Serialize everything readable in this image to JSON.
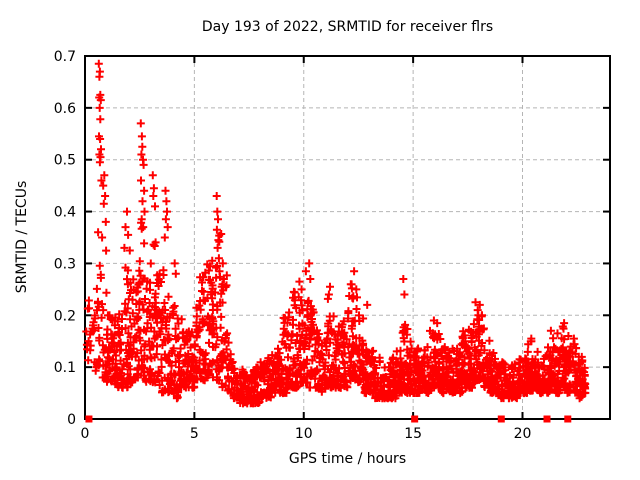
{
  "title": "Day 193 of 2022, SRMTID for receiver flrs",
  "chart_data": {
    "type": "scatter",
    "title": "Day 193 of 2022, SRMTID for receiver flrs",
    "xlabel": "GPS time / hours",
    "ylabel": "SRMTID / TECUs",
    "xlim": [
      0,
      24
    ],
    "ylim": [
      0,
      0.7
    ],
    "xticks": [
      0,
      5,
      10,
      15,
      20
    ],
    "yticks": [
      0,
      0.1,
      0.2,
      0.3,
      0.4,
      0.5,
      0.6,
      0.7
    ],
    "grid": true,
    "legend": "none",
    "marker": "plus",
    "zero_marker": "filled-square",
    "colors": {
      "marker": "#ff0000",
      "grid": "#b5b5b5",
      "border": "#000000",
      "background": "#ffffff"
    },
    "x_data_max": 22.9,
    "bin_width": 0.25,
    "bins": [
      [
        0.0,
        0.09,
        0.24,
        10
      ],
      [
        0.25,
        0.09,
        0.21,
        10
      ],
      [
        0.5,
        0.1,
        0.3,
        16
      ],
      [
        0.75,
        0.08,
        0.35,
        16
      ],
      [
        1.0,
        0.07,
        0.22,
        26
      ],
      [
        1.25,
        0.06,
        0.2,
        26
      ],
      [
        1.5,
        0.06,
        0.22,
        26
      ],
      [
        1.75,
        0.06,
        0.3,
        26
      ],
      [
        2.0,
        0.07,
        0.28,
        26
      ],
      [
        2.25,
        0.08,
        0.35,
        26
      ],
      [
        2.5,
        0.08,
        0.4,
        26
      ],
      [
        2.75,
        0.07,
        0.3,
        26
      ],
      [
        3.0,
        0.07,
        0.35,
        26
      ],
      [
        3.25,
        0.06,
        0.28,
        26
      ],
      [
        3.5,
        0.05,
        0.32,
        26
      ],
      [
        3.75,
        0.05,
        0.25,
        26
      ],
      [
        4.0,
        0.04,
        0.22,
        26
      ],
      [
        4.25,
        0.05,
        0.2,
        26
      ],
      [
        4.5,
        0.06,
        0.18,
        26
      ],
      [
        4.75,
        0.06,
        0.17,
        26
      ],
      [
        5.0,
        0.07,
        0.24,
        26
      ],
      [
        5.25,
        0.07,
        0.28,
        26
      ],
      [
        5.5,
        0.08,
        0.3,
        26
      ],
      [
        5.75,
        0.08,
        0.32,
        26
      ],
      [
        6.0,
        0.07,
        0.36,
        26
      ],
      [
        6.25,
        0.06,
        0.3,
        22
      ],
      [
        6.5,
        0.05,
        0.15,
        20
      ],
      [
        6.75,
        0.04,
        0.12,
        20
      ],
      [
        7.0,
        0.03,
        0.1,
        24
      ],
      [
        7.25,
        0.03,
        0.09,
        26
      ],
      [
        7.5,
        0.03,
        0.1,
        26
      ],
      [
        7.75,
        0.03,
        0.1,
        26
      ],
      [
        8.0,
        0.04,
        0.11,
        26
      ],
      [
        8.25,
        0.04,
        0.12,
        26
      ],
      [
        8.5,
        0.05,
        0.14,
        26
      ],
      [
        8.75,
        0.05,
        0.16,
        26
      ],
      [
        9.0,
        0.05,
        0.2,
        26
      ],
      [
        9.25,
        0.06,
        0.22,
        26
      ],
      [
        9.5,
        0.06,
        0.25,
        26
      ],
      [
        9.75,
        0.07,
        0.26,
        26
      ],
      [
        10.0,
        0.07,
        0.24,
        26
      ],
      [
        10.25,
        0.06,
        0.22,
        26
      ],
      [
        10.5,
        0.06,
        0.18,
        26
      ],
      [
        10.75,
        0.05,
        0.15,
        26
      ],
      [
        11.0,
        0.06,
        0.24,
        26
      ],
      [
        11.25,
        0.06,
        0.2,
        26
      ],
      [
        11.5,
        0.06,
        0.18,
        26
      ],
      [
        11.75,
        0.06,
        0.2,
        26
      ],
      [
        12.0,
        0.07,
        0.26,
        26
      ],
      [
        12.25,
        0.07,
        0.24,
        26
      ],
      [
        12.5,
        0.06,
        0.2,
        26
      ],
      [
        12.75,
        0.05,
        0.16,
        26
      ],
      [
        13.0,
        0.05,
        0.14,
        26
      ],
      [
        13.25,
        0.04,
        0.12,
        26
      ],
      [
        13.5,
        0.04,
        0.11,
        26
      ],
      [
        13.75,
        0.04,
        0.11,
        26
      ],
      [
        14.0,
        0.04,
        0.12,
        26
      ],
      [
        14.25,
        0.05,
        0.14,
        26
      ],
      [
        14.5,
        0.05,
        0.2,
        26
      ],
      [
        14.75,
        0.05,
        0.16,
        26
      ],
      [
        15.0,
        0.05,
        0.14,
        26
      ],
      [
        15.25,
        0.05,
        0.13,
        26
      ],
      [
        15.5,
        0.05,
        0.14,
        26
      ],
      [
        15.75,
        0.06,
        0.17,
        26
      ],
      [
        16.0,
        0.06,
        0.18,
        26
      ],
      [
        16.25,
        0.05,
        0.14,
        26
      ],
      [
        16.5,
        0.05,
        0.13,
        26
      ],
      [
        16.75,
        0.05,
        0.14,
        26
      ],
      [
        17.0,
        0.05,
        0.15,
        26
      ],
      [
        17.25,
        0.06,
        0.17,
        26
      ],
      [
        17.5,
        0.06,
        0.19,
        26
      ],
      [
        17.75,
        0.07,
        0.22,
        26
      ],
      [
        18.0,
        0.07,
        0.21,
        26
      ],
      [
        18.25,
        0.06,
        0.16,
        26
      ],
      [
        18.5,
        0.05,
        0.13,
        26
      ],
      [
        18.75,
        0.05,
        0.11,
        26
      ],
      [
        19.0,
        0.04,
        0.11,
        26
      ],
      [
        19.25,
        0.04,
        0.1,
        26
      ],
      [
        19.5,
        0.04,
        0.11,
        26
      ],
      [
        19.75,
        0.05,
        0.12,
        26
      ],
      [
        20.0,
        0.05,
        0.13,
        26
      ],
      [
        20.25,
        0.05,
        0.15,
        26
      ],
      [
        20.5,
        0.05,
        0.13,
        26
      ],
      [
        20.75,
        0.05,
        0.12,
        26
      ],
      [
        21.0,
        0.05,
        0.14,
        26
      ],
      [
        21.25,
        0.06,
        0.17,
        26
      ],
      [
        21.5,
        0.05,
        0.14,
        26
      ],
      [
        21.75,
        0.06,
        0.18,
        26
      ],
      [
        22.0,
        0.05,
        0.14,
        26
      ],
      [
        22.25,
        0.05,
        0.15,
        26
      ],
      [
        22.5,
        0.04,
        0.12,
        26
      ],
      [
        22.75,
        0.05,
        0.1,
        14
      ]
    ],
    "peak_points": [
      [
        0.63,
        0.685
      ],
      [
        0.66,
        0.66
      ],
      [
        0.68,
        0.67
      ],
      [
        0.7,
        0.625
      ],
      [
        0.65,
        0.62
      ],
      [
        0.72,
        0.615
      ],
      [
        0.67,
        0.6
      ],
      [
        0.7,
        0.578
      ],
      [
        0.64,
        0.545
      ],
      [
        0.69,
        0.54
      ],
      [
        0.73,
        0.52
      ],
      [
        0.66,
        0.51
      ],
      [
        0.71,
        0.505
      ],
      [
        0.68,
        0.495
      ],
      [
        0.75,
        0.46
      ],
      [
        0.83,
        0.45
      ],
      [
        0.88,
        0.47
      ],
      [
        0.92,
        0.43
      ],
      [
        0.86,
        0.415
      ],
      [
        0.95,
        0.38
      ],
      [
        0.6,
        0.36
      ],
      [
        0.78,
        0.35
      ],
      [
        1.8,
        0.33
      ],
      [
        1.85,
        0.37
      ],
      [
        1.92,
        0.4
      ],
      [
        1.97,
        0.355
      ],
      [
        2.05,
        0.325
      ],
      [
        2.55,
        0.57
      ],
      [
        2.6,
        0.545
      ],
      [
        2.62,
        0.525
      ],
      [
        2.58,
        0.51
      ],
      [
        2.65,
        0.5
      ],
      [
        2.68,
        0.49
      ],
      [
        2.56,
        0.46
      ],
      [
        2.7,
        0.44
      ],
      [
        2.63,
        0.42
      ],
      [
        2.72,
        0.4
      ],
      [
        2.59,
        0.385
      ],
      [
        2.66,
        0.37
      ],
      [
        3.1,
        0.47
      ],
      [
        3.15,
        0.445
      ],
      [
        3.12,
        0.43
      ],
      [
        3.2,
        0.41
      ],
      [
        3.68,
        0.44
      ],
      [
        3.72,
        0.42
      ],
      [
        3.75,
        0.4
      ],
      [
        3.7,
        0.385
      ],
      [
        3.78,
        0.37
      ],
      [
        3.65,
        0.35
      ],
      [
        4.1,
        0.3
      ],
      [
        4.15,
        0.28
      ],
      [
        6.02,
        0.43
      ],
      [
        6.05,
        0.4
      ],
      [
        6.08,
        0.385
      ],
      [
        6.03,
        0.365
      ],
      [
        6.1,
        0.345
      ],
      [
        6.06,
        0.33
      ],
      [
        6.12,
        0.31
      ],
      [
        6.04,
        0.295
      ],
      [
        6.15,
        0.285
      ],
      [
        6.3,
        0.3
      ],
      [
        6.35,
        0.27
      ],
      [
        6.25,
        0.255
      ],
      [
        9.55,
        0.245
      ],
      [
        9.8,
        0.265
      ],
      [
        9.9,
        0.25
      ],
      [
        10.1,
        0.285
      ],
      [
        10.25,
        0.3
      ],
      [
        10.3,
        0.27
      ],
      [
        11.15,
        0.24
      ],
      [
        11.2,
        0.255
      ],
      [
        12.15,
        0.26
      ],
      [
        12.3,
        0.285
      ],
      [
        12.4,
        0.25
      ],
      [
        12.9,
        0.22
      ],
      [
        14.55,
        0.27
      ],
      [
        14.6,
        0.24
      ],
      [
        15.95,
        0.19
      ],
      [
        16.1,
        0.185
      ],
      [
        17.85,
        0.225
      ],
      [
        17.95,
        0.21
      ],
      [
        18.05,
        0.22
      ],
      [
        18.15,
        0.2
      ],
      [
        20.4,
        0.155
      ],
      [
        21.3,
        0.17
      ],
      [
        21.6,
        0.165
      ],
      [
        21.9,
        0.185
      ],
      [
        22.1,
        0.16
      ],
      [
        22.35,
        0.155
      ]
    ],
    "zero_axis_markers_x": [
      0.18,
      15.07,
      19.03,
      21.12,
      22.07
    ]
  }
}
